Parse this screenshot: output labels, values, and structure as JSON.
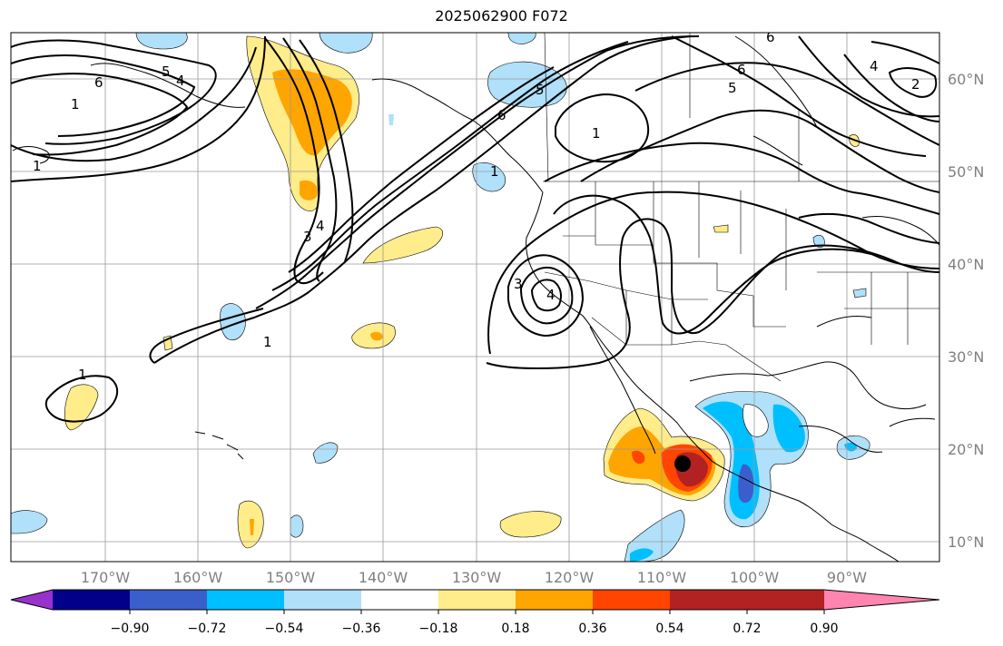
{
  "title": "2025062900 F072",
  "map": {
    "lat_labels": [
      "60°N",
      "50°N",
      "40°N",
      "30°N",
      "20°N",
      "10°N"
    ],
    "lon_labels": [
      "170°W",
      "160°W",
      "150°W",
      "140°W",
      "130°W",
      "120°W",
      "110°W",
      "100°W",
      "90°W"
    ],
    "contour_labels": [
      "6",
      "5",
      "4",
      "1",
      "1",
      "3",
      "4",
      "1",
      "1",
      "6",
      "5",
      "1",
      "6",
      "5",
      "3",
      "4",
      "1",
      "2",
      "4",
      "6"
    ],
    "storm_marker_color": "#000000"
  },
  "colorbar": {
    "tick_labels": [
      "−0.90",
      "−0.72",
      "−0.54",
      "−0.36",
      "−0.18",
      "0.18",
      "0.36",
      "0.54",
      "0.72",
      "0.90"
    ],
    "colors": [
      "#9932cc",
      "#00008b",
      "#3a5fcd",
      "#00bfff",
      "#b0e0fa",
      "#ffffff",
      "#ffec8b",
      "#ffa500",
      "#ff4500",
      "#b22222",
      "#ff85b0"
    ]
  }
}
